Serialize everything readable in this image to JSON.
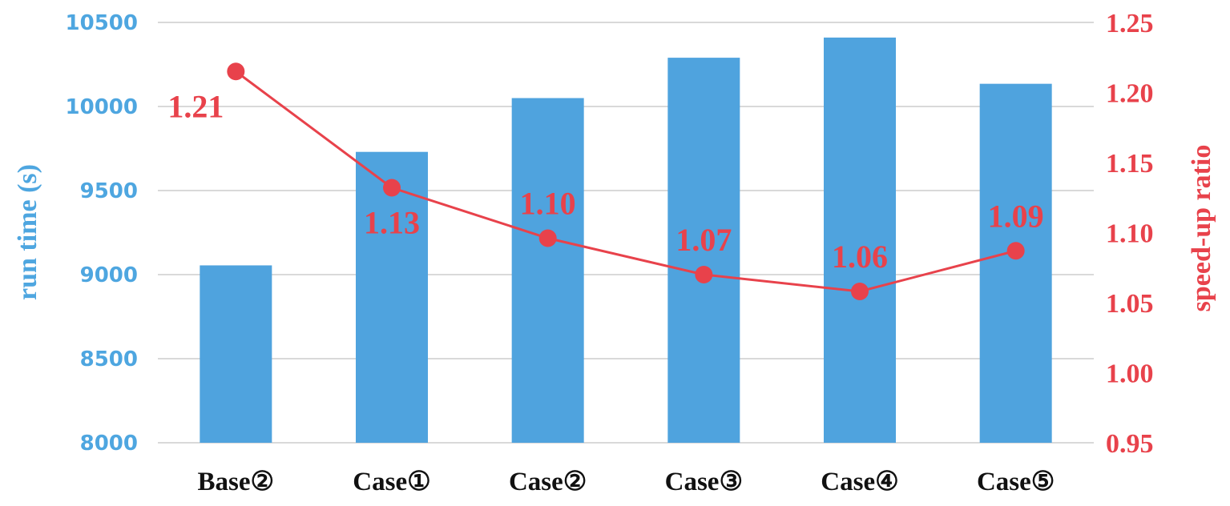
{
  "chart_data": {
    "type": "bar",
    "categories": [
      "Base②",
      "Case①",
      "Case②",
      "Case③",
      "Case④",
      "Case⑤"
    ],
    "series": [
      {
        "type": "bar",
        "axis": "left",
        "values": [
          9055,
          9730,
          10050,
          10290,
          10410,
          10135
        ],
        "color": "#4fa3de"
      },
      {
        "type": "line",
        "axis": "right",
        "values": [
          1.215,
          1.132,
          1.096,
          1.07,
          1.058,
          1.087
        ],
        "data_labels": [
          "1.21",
          "1.13",
          "1.10",
          "1.07",
          "1.06",
          "1.09"
        ],
        "color": "#e8424b"
      }
    ],
    "ylabel": "run time (s)",
    "ylabel_right": "speed-up ratio",
    "ylim": [
      8000,
      10500
    ],
    "ylim_right": [
      0.95,
      1.25
    ],
    "yticks": [
      "8000",
      "8500",
      "9000",
      "9500",
      "10000",
      "10500"
    ],
    "yticks_right": [
      "0.95",
      "1.00",
      "1.05",
      "1.10",
      "1.15",
      "1.20",
      "1.25"
    ],
    "grid": true,
    "legend": "none"
  }
}
